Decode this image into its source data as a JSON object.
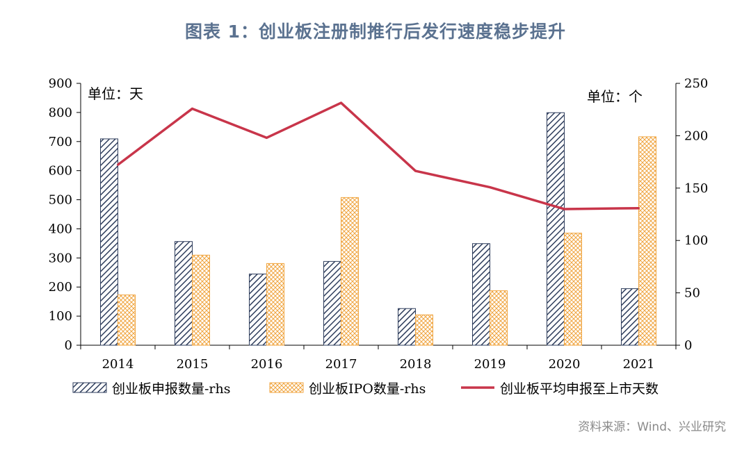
{
  "title": "图表 1：创业板注册制推行后发行速度稳步提升",
  "source": "资料来源：Wind、兴业研究",
  "chart_data": {
    "type": "bar",
    "categories": [
      "2014",
      "2015",
      "2016",
      "2017",
      "2018",
      "2019",
      "2020",
      "2021"
    ],
    "left_unit_label": "单位：天",
    "right_unit_label": "单位：个",
    "left_axis": {
      "min": 0,
      "max": 900,
      "ticks": [
        0,
        100,
        200,
        300,
        400,
        500,
        600,
        700,
        800,
        900
      ]
    },
    "right_axis": {
      "min": 0,
      "max": 250,
      "ticks": [
        0,
        50,
        100,
        150,
        200,
        250
      ]
    },
    "series": [
      {
        "name": "创业板申报数量-rhs",
        "type": "bar",
        "axis": "right",
        "pattern": "hatch",
        "color": "#2e3d5c",
        "values": [
          197,
          99,
          68,
          80,
          35,
          97,
          222,
          54
        ]
      },
      {
        "name": "创业板IPO数量-rhs",
        "type": "bar",
        "axis": "right",
        "pattern": "crosshatch",
        "color": "#f0a540",
        "values": [
          48,
          86,
          78,
          141,
          29,
          52,
          107,
          199
        ]
      },
      {
        "name": "创业板平均申报至上市天数",
        "type": "line",
        "axis": "left",
        "color": "#c8354a",
        "values": [
          620,
          813,
          713,
          833,
          599,
          543,
          468,
          471
        ]
      }
    ],
    "legend_placement": "bottom",
    "grid": false
  }
}
